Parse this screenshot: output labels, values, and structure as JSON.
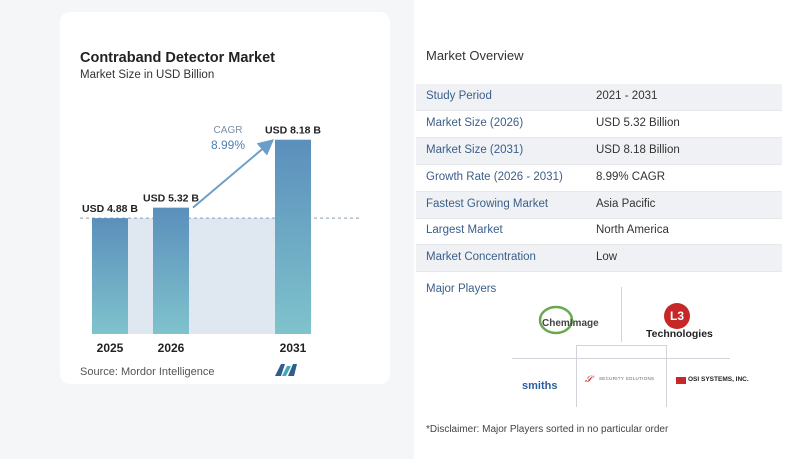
{
  "chart_data": {
    "type": "bar",
    "title": "Contraband Detector Market",
    "subtitle": "Market Size in USD Billion",
    "categories": [
      "2025",
      "2026",
      "2031"
    ],
    "values": [
      4.88,
      5.32,
      8.18
    ],
    "value_labels": [
      "USD 4.88 B",
      "USD 5.32 B",
      "USD 8.18 B"
    ],
    "cagr_label": "CAGR",
    "cagr_value": "8.99%",
    "ylim": [
      0,
      8.8
    ],
    "colors": {
      "bar": "#5b8fbc",
      "bar_bottom": "#7fc3cc",
      "arrow": "#6b9ec9",
      "shade": "#dfe7f1"
    }
  },
  "source": "Source:  Mordor Intelligence",
  "overview": {
    "title": "Market Overview",
    "rows": [
      {
        "key": "Study Period",
        "value": "2021 - 2031"
      },
      {
        "key": "Market Size (2026)",
        "value": "USD 5.32 Billion"
      },
      {
        "key": "Market Size (2031)",
        "value": "USD 8.18 Billion"
      },
      {
        "key": "Growth Rate (2026 - 2031)",
        "value": "8.99% CAGR"
      },
      {
        "key": "Fastest Growing Market",
        "value": "Asia Pacific"
      },
      {
        "key": "Largest Market",
        "value": "North America"
      },
      {
        "key": "Market Concentration",
        "value": "Low"
      }
    ],
    "major_players_label": "Major Players",
    "players": {
      "chemimage": "ChemImage",
      "l3_mark": "L3",
      "l3_name": "Technologies",
      "smiths": "smiths",
      "godrej_tag": "SECURITY SOLUTIONS",
      "osi": "OSI SYSTEMS, INC."
    },
    "disclaimer": "*Disclaimer: Major Players sorted in no particular order"
  }
}
